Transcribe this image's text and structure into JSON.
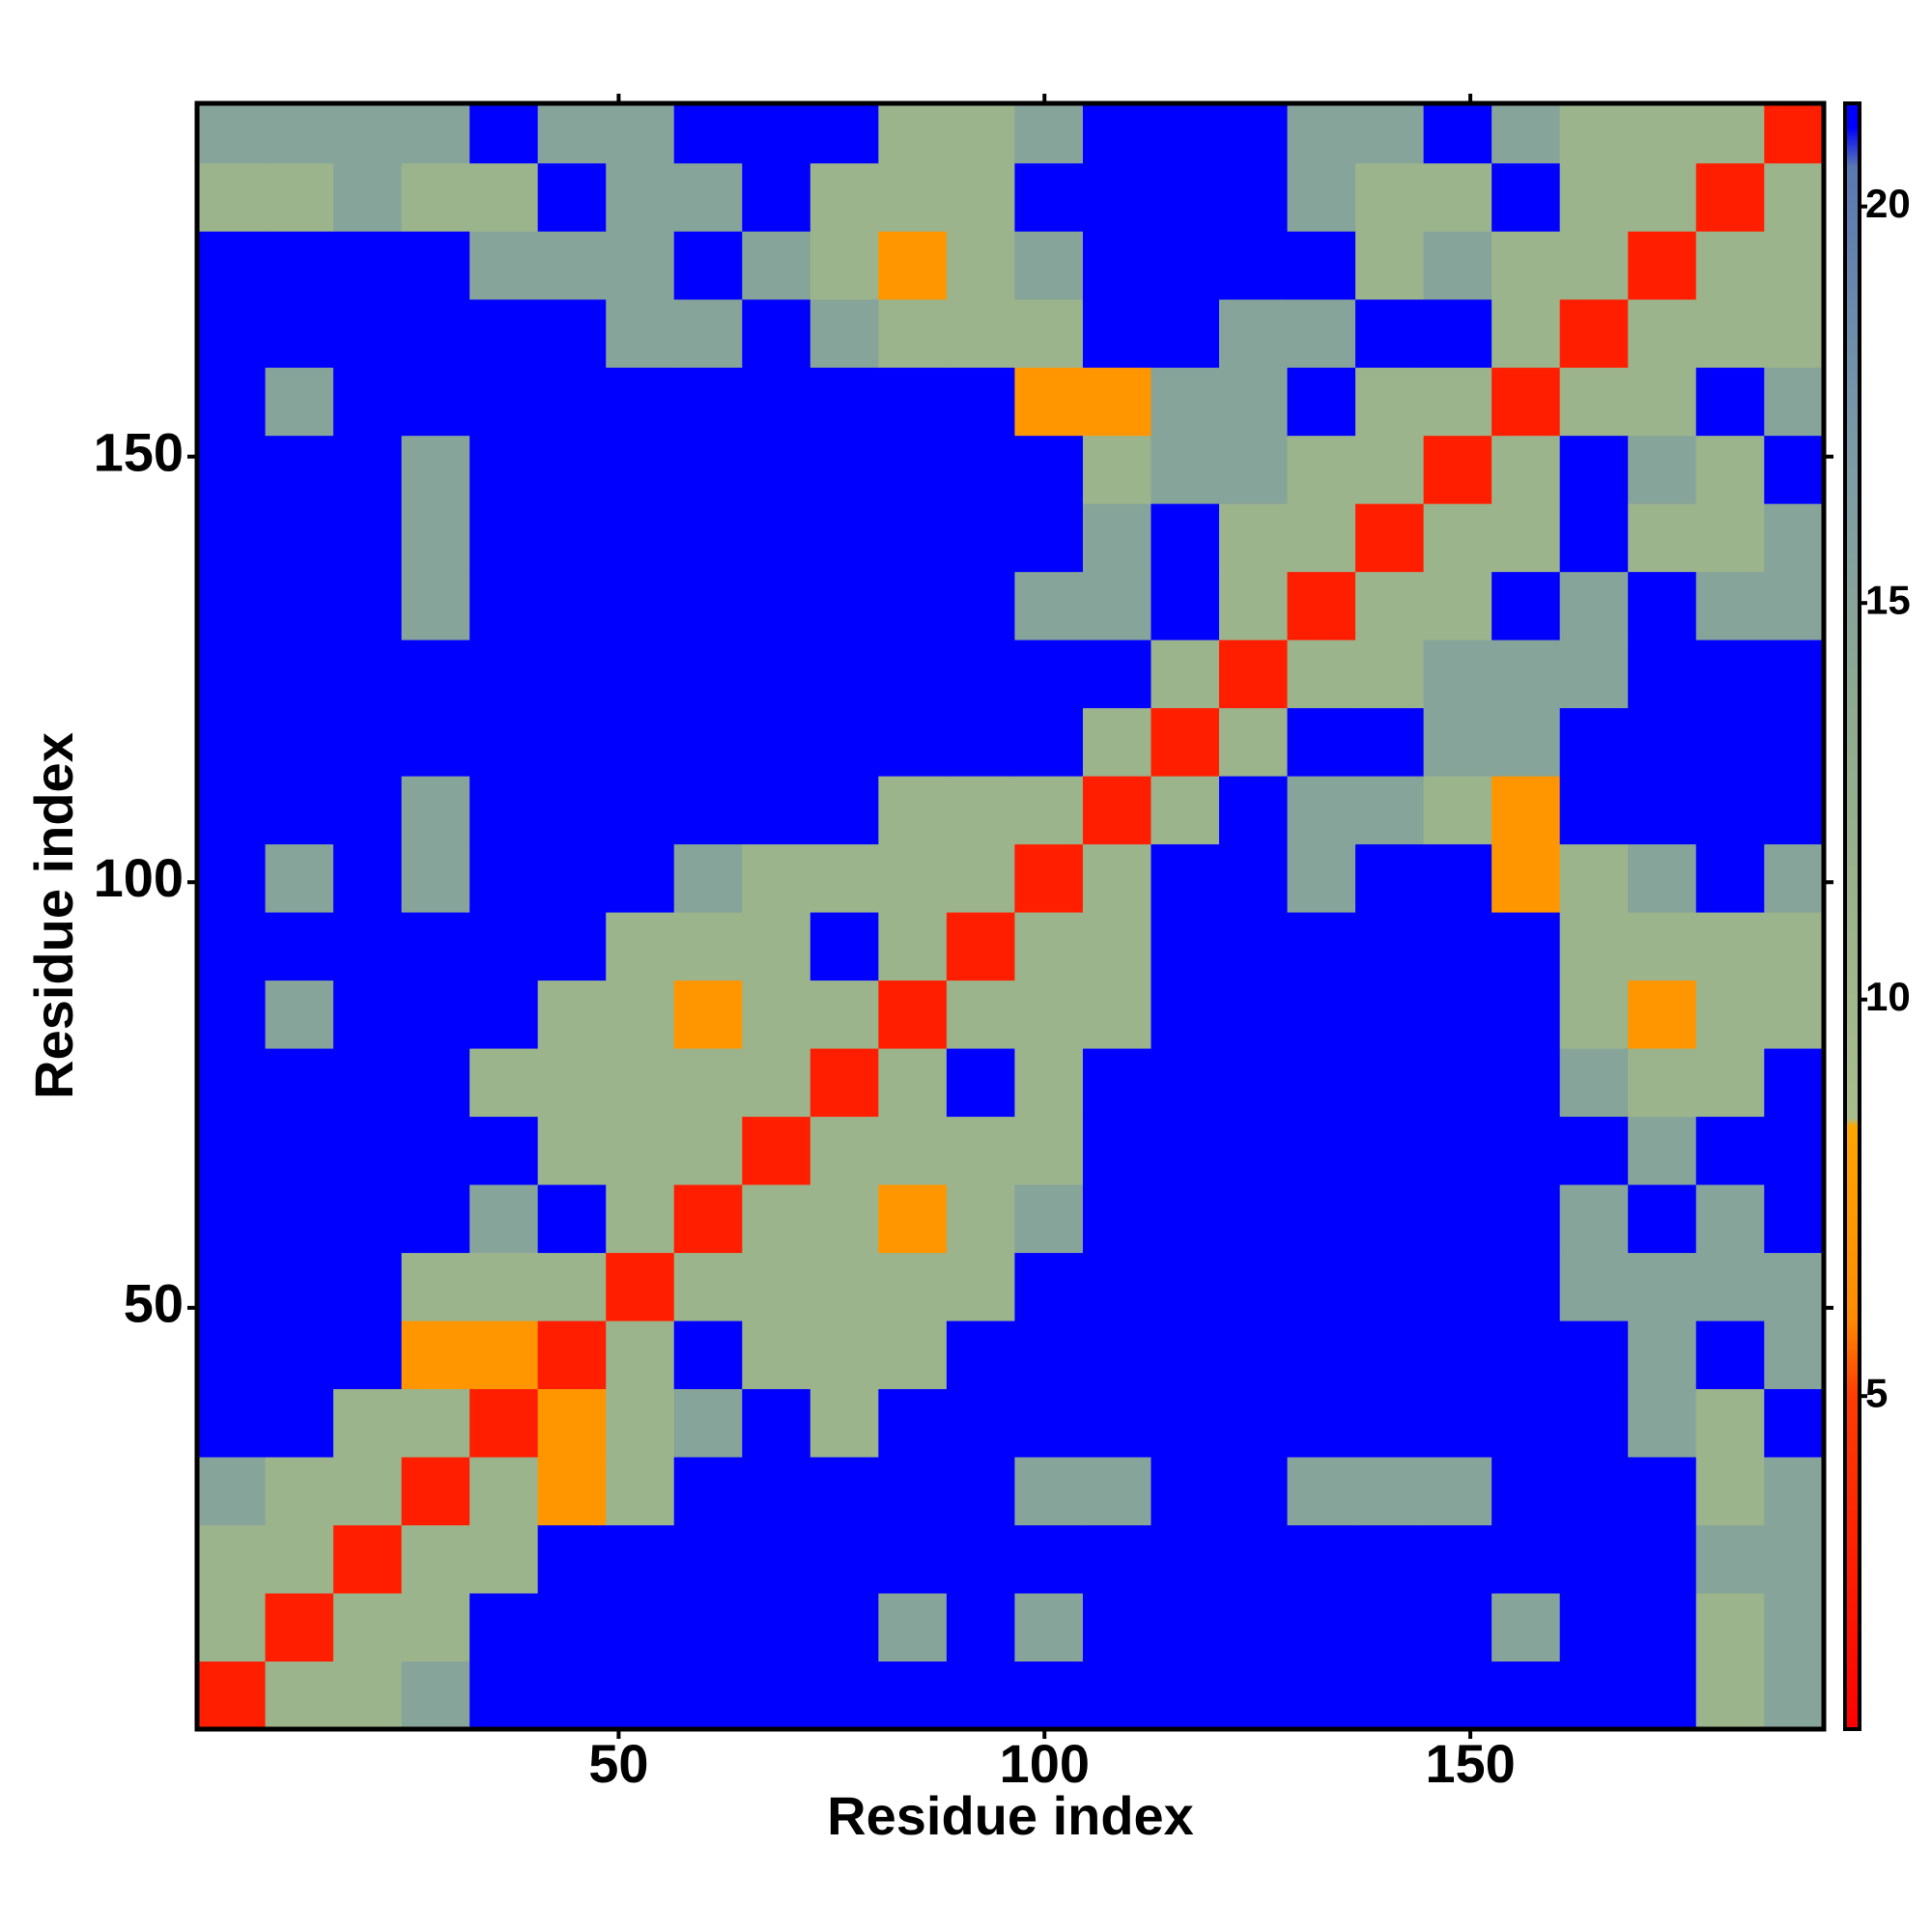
{
  "chart_data": {
    "type": "heatmap",
    "x_label": "Residue index",
    "y_label": "Residue index",
    "xlim": [
      0.5,
      191.5
    ],
    "ylim": [
      0.5,
      191.5
    ],
    "xticks": [
      50,
      100,
      150
    ],
    "yticks": [
      50,
      100,
      150
    ],
    "x_edges": [
      0.5,
      8.5,
      16.5,
      24.5,
      32.5,
      40.5,
      48.5,
      56.5,
      64.5,
      72.5,
      80.5,
      88.5,
      96.5,
      104.5,
      112.5,
      120.5,
      128.5,
      136.5,
      144.5,
      152.5,
      160.5,
      168.5,
      176.5,
      184.5,
      191.5
    ],
    "y_edges": [
      0.5,
      8.5,
      16.5,
      24.5,
      32.5,
      40.5,
      48.5,
      56.5,
      64.5,
      72.5,
      80.5,
      88.5,
      96.5,
      104.5,
      112.5,
      120.5,
      128.5,
      136.5,
      144.5,
      152.5,
      160.5,
      168.5,
      176.5,
      184.5,
      191.5
    ],
    "z": [
      [
        3,
        11,
        11,
        15,
        21,
        21,
        21,
        21,
        21,
        21,
        21,
        21,
        21,
        21,
        21,
        21,
        21,
        21,
        21,
        21,
        21,
        21,
        11,
        15
      ],
      [
        11,
        3,
        11,
        11,
        21,
        21,
        21,
        21,
        21,
        21,
        15,
        21,
        15,
        21,
        21,
        21,
        21,
        21,
        21,
        15,
        21,
        21,
        11,
        15
      ],
      [
        11,
        11,
        3,
        11,
        11,
        21,
        21,
        21,
        21,
        21,
        21,
        21,
        21,
        21,
        21,
        21,
        21,
        21,
        21,
        21,
        21,
        21,
        15,
        15
      ],
      [
        15,
        11,
        11,
        3,
        11,
        7,
        11,
        21,
        21,
        21,
        21,
        21,
        15,
        15,
        21,
        21,
        15,
        15,
        15,
        21,
        21,
        21,
        11,
        15
      ],
      [
        21,
        21,
        11,
        11,
        3,
        7,
        11,
        15,
        21,
        11,
        21,
        21,
        21,
        21,
        21,
        21,
        21,
        21,
        21,
        21,
        21,
        15,
        11,
        21
      ],
      [
        21,
        21,
        21,
        7,
        7,
        3,
        11,
        21,
        11,
        11,
        11,
        21,
        21,
        21,
        21,
        21,
        21,
        21,
        21,
        21,
        21,
        15,
        21,
        15
      ],
      [
        21,
        21,
        21,
        11,
        11,
        11,
        3,
        11,
        11,
        11,
        11,
        11,
        21,
        21,
        21,
        21,
        21,
        21,
        21,
        21,
        15,
        15,
        15,
        15
      ],
      [
        21,
        21,
        21,
        21,
        15,
        21,
        11,
        3,
        11,
        11,
        7,
        11,
        15,
        21,
        21,
        21,
        21,
        21,
        21,
        21,
        15,
        21,
        15,
        21
      ],
      [
        21,
        21,
        21,
        21,
        21,
        11,
        11,
        11,
        3,
        11,
        11,
        11,
        11,
        21,
        21,
        21,
        21,
        21,
        21,
        21,
        21,
        15,
        21,
        21
      ],
      [
        21,
        21,
        21,
        21,
        11,
        11,
        11,
        11,
        11,
        3,
        11,
        21,
        11,
        21,
        21,
        21,
        21,
        21,
        21,
        21,
        15,
        11,
        11,
        21
      ],
      [
        21,
        15,
        21,
        21,
        21,
        11,
        11,
        7,
        11,
        11,
        3,
        11,
        11,
        11,
        21,
        21,
        21,
        21,
        21,
        21,
        11,
        7,
        11,
        11
      ],
      [
        21,
        21,
        21,
        21,
        21,
        21,
        11,
        11,
        11,
        21,
        11,
        3,
        11,
        11,
        21,
        21,
        21,
        21,
        21,
        21,
        11,
        11,
        11,
        11
      ],
      [
        21,
        15,
        21,
        15,
        21,
        21,
        21,
        15,
        11,
        11,
        11,
        11,
        3,
        11,
        21,
        21,
        15,
        21,
        21,
        7,
        11,
        15,
        21,
        15
      ],
      [
        21,
        21,
        21,
        15,
        21,
        21,
        21,
        21,
        21,
        21,
        11,
        11,
        11,
        3,
        11,
        21,
        15,
        15,
        11,
        7,
        21,
        21,
        21,
        21
      ],
      [
        21,
        21,
        21,
        21,
        21,
        21,
        21,
        21,
        21,
        21,
        21,
        21,
        21,
        11,
        3,
        11,
        21,
        21,
        15,
        15,
        21,
        21,
        21,
        21
      ],
      [
        21,
        21,
        21,
        21,
        21,
        21,
        21,
        21,
        21,
        21,
        21,
        21,
        21,
        21,
        11,
        3,
        11,
        11,
        15,
        15,
        15,
        21,
        21,
        21
      ],
      [
        21,
        21,
        21,
        15,
        21,
        21,
        21,
        21,
        21,
        21,
        21,
        21,
        15,
        15,
        21,
        11,
        3,
        11,
        11,
        21,
        15,
        21,
        15,
        15
      ],
      [
        21,
        21,
        21,
        15,
        21,
        21,
        21,
        21,
        21,
        21,
        21,
        21,
        21,
        15,
        21,
        11,
        11,
        3,
        11,
        11,
        21,
        11,
        11,
        15
      ],
      [
        21,
        21,
        21,
        15,
        21,
        21,
        21,
        21,
        21,
        21,
        21,
        21,
        21,
        11,
        15,
        15,
        11,
        11,
        3,
        11,
        21,
        15,
        11,
        21
      ],
      [
        21,
        15,
        21,
        21,
        21,
        21,
        21,
        21,
        21,
        21,
        21,
        21,
        7,
        7,
        15,
        15,
        21,
        11,
        11,
        3,
        11,
        11,
        21,
        15
      ],
      [
        21,
        21,
        21,
        21,
        21,
        21,
        15,
        15,
        21,
        15,
        11,
        11,
        11,
        21,
        21,
        15,
        15,
        21,
        21,
        11,
        3,
        11,
        11,
        11
      ],
      [
        21,
        21,
        21,
        21,
        15,
        15,
        15,
        21,
        15,
        11,
        7,
        11,
        15,
        21,
        21,
        21,
        21,
        11,
        15,
        11,
        11,
        3,
        11,
        11
      ],
      [
        11,
        11,
        15,
        11,
        11,
        21,
        15,
        15,
        21,
        11,
        11,
        11,
        21,
        21,
        21,
        21,
        15,
        11,
        11,
        21,
        11,
        11,
        3,
        11
      ],
      [
        15,
        15,
        15,
        15,
        21,
        15,
        15,
        21,
        21,
        21,
        11,
        11,
        15,
        21,
        21,
        21,
        15,
        15,
        21,
        15,
        11,
        11,
        11,
        3
      ]
    ],
    "clim": [
      0.8,
      21.3
    ],
    "cticks": [
      5,
      10,
      15,
      20
    ],
    "colorscale": [
      {
        "value": 0.8,
        "color": "#ff0000"
      },
      {
        "value": 5,
        "color": "#ff3c00"
      },
      {
        "value": 6,
        "color": "#ff8c00"
      },
      {
        "value": 8.4,
        "color": "#ffa500"
      },
      {
        "value": 8.5,
        "color": "#a9bc8c"
      },
      {
        "value": 13,
        "color": "#91ad8c"
      },
      {
        "value": 17,
        "color": "#7b9aa6"
      },
      {
        "value": 20.5,
        "color": "#5a78b2"
      },
      {
        "value": 21,
        "color": "#0000ff"
      },
      {
        "value": 21.3,
        "color": "#0000ff"
      }
    ]
  }
}
